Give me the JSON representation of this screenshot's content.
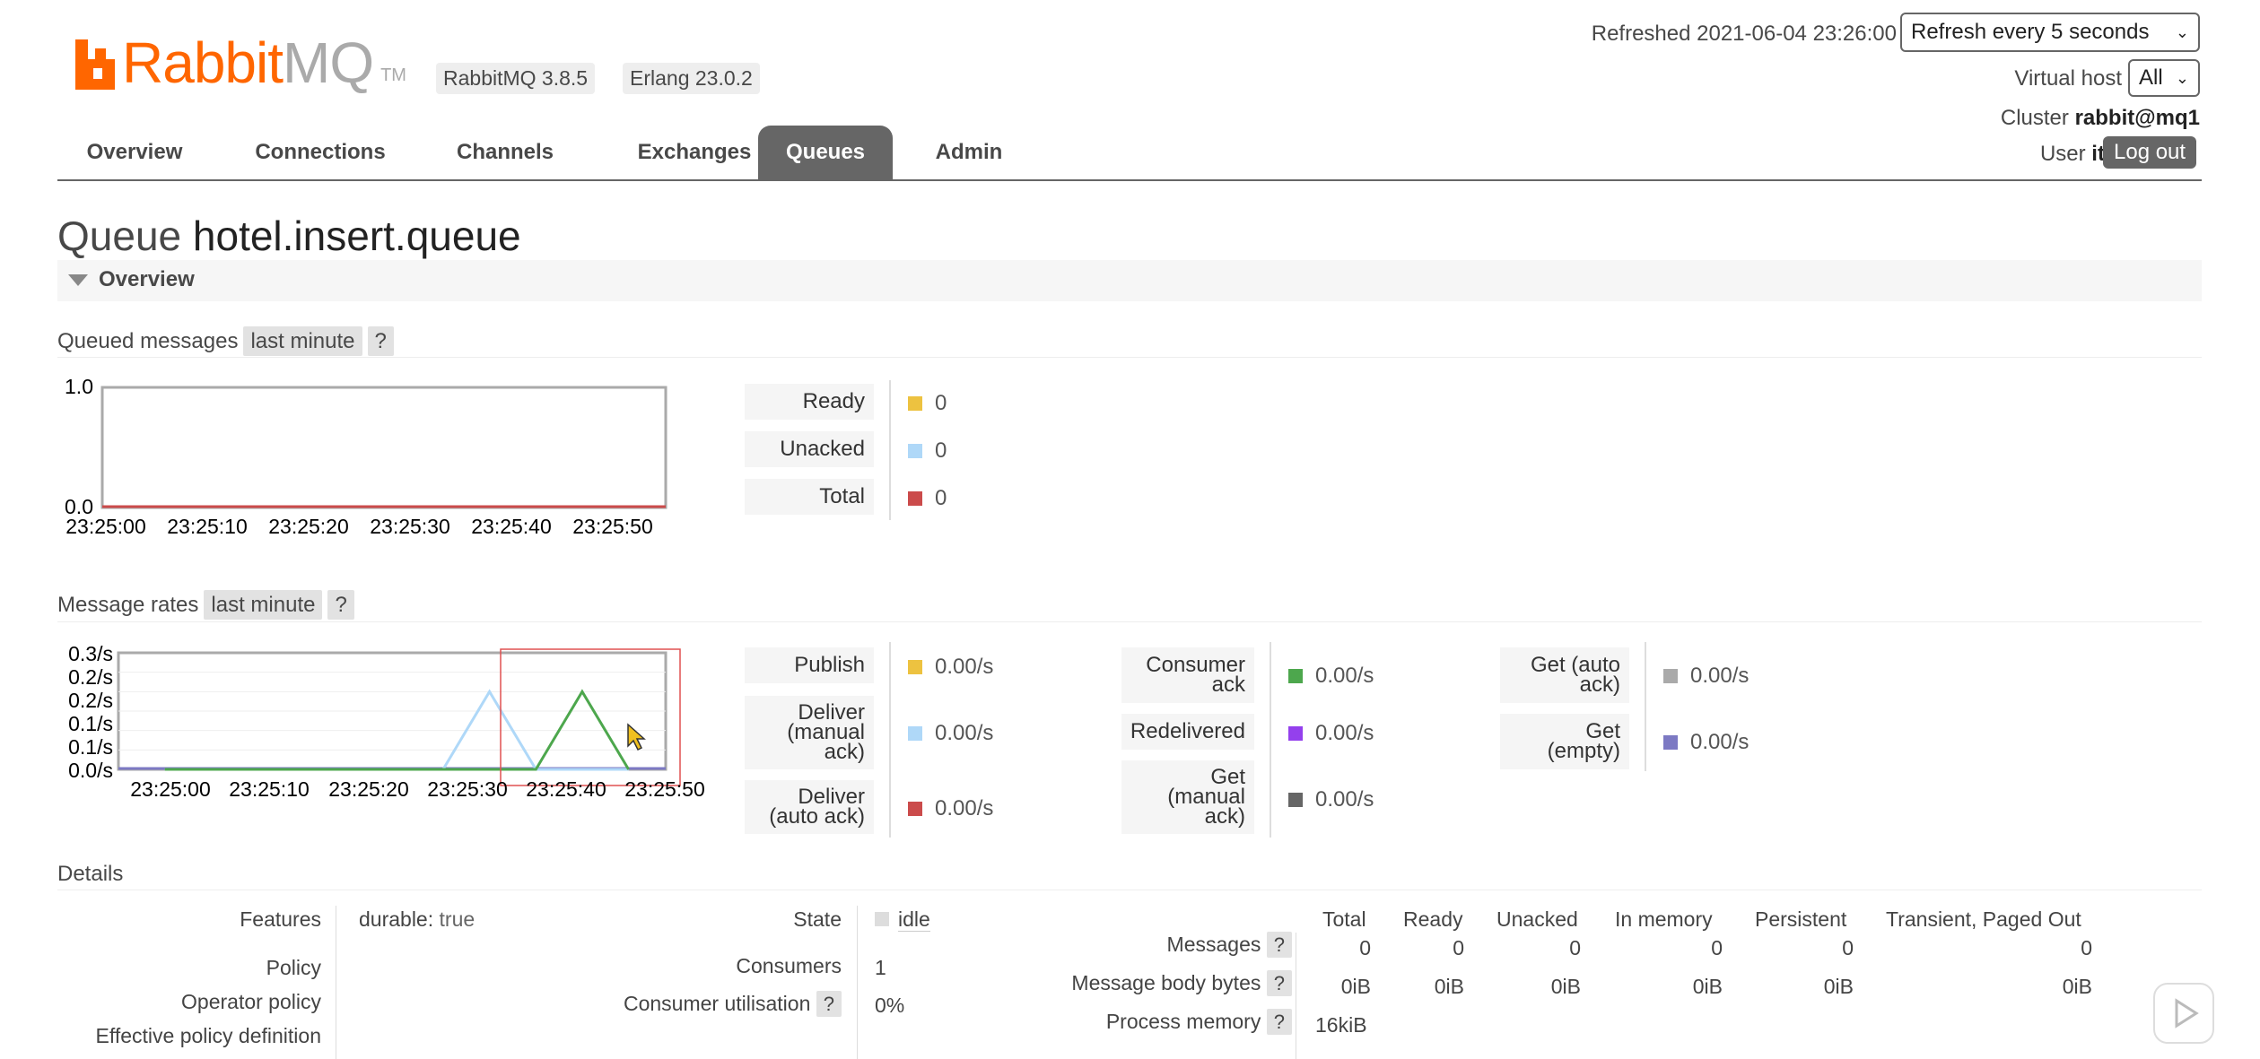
{
  "app": {
    "logo_brand": "Rabbit",
    "logo_suffix": "MQ",
    "logo_tm": "TM",
    "version": "RabbitMQ 3.8.5",
    "erlang": "Erlang 23.0.2"
  },
  "header": {
    "refreshed": "Refreshed 2021-06-04 23:26:00",
    "refresh_select": "Refresh every 5 seconds",
    "vhost_label": "Virtual host",
    "vhost_value": "All",
    "cluster_label": "Cluster",
    "cluster_value": "rabbit@mq1",
    "user_label": "User",
    "user_value": "itcast",
    "logout": "Log out"
  },
  "nav": {
    "tabs": [
      "Overview",
      "Connections",
      "Channels",
      "Exchanges",
      "Queues",
      "Admin"
    ],
    "active": "Queues"
  },
  "page": {
    "title_prefix": "Queue",
    "queue_name": "hotel.insert.queue",
    "section": "Overview"
  },
  "queued": {
    "label": "Queued messages",
    "range": "last minute",
    "help": "?",
    "y_ticks": [
      "1.0",
      "0.0"
    ],
    "x_ticks": [
      "23:25:00",
      "23:25:10",
      "23:25:20",
      "23:25:30",
      "23:25:40",
      "23:25:50"
    ],
    "rows": [
      {
        "label": "Ready",
        "value": "0",
        "color": "#edc240"
      },
      {
        "label": "Unacked",
        "value": "0",
        "color": "#afd8f8"
      },
      {
        "label": "Total",
        "value": "0",
        "color": "#cb4b4b"
      }
    ]
  },
  "rates": {
    "label": "Message rates",
    "range": "last minute",
    "help": "?",
    "y_ticks": [
      "0.3/s",
      "0.2/s",
      "0.2/s",
      "0.1/s",
      "0.1/s",
      "0.0/s"
    ],
    "x_ticks": [
      "23:25:00",
      "23:25:10",
      "23:25:20",
      "23:25:30",
      "23:25:40",
      "23:25:50"
    ],
    "col1": [
      {
        "label": "Publish",
        "value": "0.00/s",
        "color": "#edc240"
      },
      {
        "label": "Deliver (manual ack)",
        "value": "0.00/s",
        "color": "#afd8f8"
      },
      {
        "label": "Deliver (auto ack)",
        "value": "0.00/s",
        "color": "#cb4b4b"
      }
    ],
    "col2": [
      {
        "label": "Consumer ack",
        "value": "0.00/s",
        "color": "#4da74d"
      },
      {
        "label": "Redelivered",
        "value": "0.00/s",
        "color": "#9440ed"
      },
      {
        "label": "Get (manual ack)",
        "value": "0.00/s",
        "color": "#666666"
      }
    ],
    "col3": [
      {
        "label": "Get (auto ack)",
        "value": "0.00/s",
        "color": "#aaaaaa"
      },
      {
        "label": "Get (empty)",
        "value": "0.00/s",
        "color": "#7c79c3"
      }
    ]
  },
  "chart_data": {
    "type": "line",
    "x": [
      "23:25:00",
      "23:25:10",
      "23:25:20",
      "23:25:30",
      "23:25:35",
      "23:25:40",
      "23:25:45",
      "23:25:50"
    ],
    "series": [
      {
        "name": "Deliver (manual ack)",
        "color": "#afd8f8",
        "values": [
          0,
          0,
          0,
          0,
          0.2,
          0,
          0,
          0
        ]
      },
      {
        "name": "Consumer ack",
        "color": "#4da74d",
        "values": [
          0,
          0,
          0,
          0,
          0,
          0,
          0.2,
          0
        ]
      }
    ],
    "ylim": [
      0,
      0.3
    ]
  },
  "details": {
    "label": "Details",
    "features_label": "Features",
    "features_key": "durable:",
    "features_val": "true",
    "policy_label": "Policy",
    "operator_policy_label": "Operator policy",
    "effective_policy_label": "Effective policy definition",
    "state_label": "State",
    "state_value": "idle",
    "consumers_label": "Consumers",
    "consumers_value": "1",
    "utilisation_label": "Consumer utilisation",
    "utilisation_value": "0%",
    "help": "?",
    "columns": [
      "Total",
      "Ready",
      "Unacked",
      "In memory",
      "Persistent",
      "Transient, Paged Out"
    ],
    "messages_label": "Messages",
    "messages": [
      "0",
      "0",
      "0",
      "0",
      "0",
      "0"
    ],
    "body_label": "Message body bytes",
    "body": [
      "0iB",
      "0iB",
      "0iB",
      "0iB",
      "0iB",
      "0iB"
    ],
    "memory_label": "Process memory",
    "memory": "16kiB"
  }
}
